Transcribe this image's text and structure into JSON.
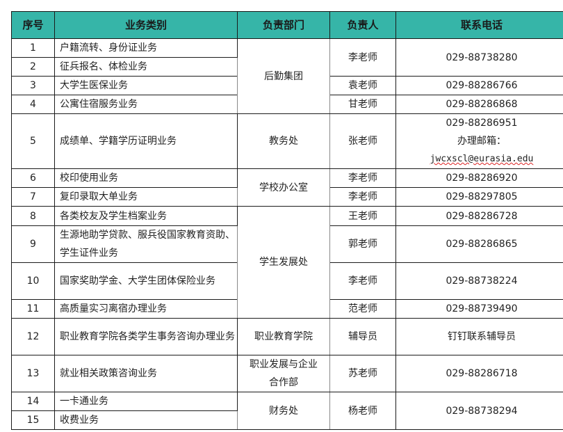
{
  "header": {
    "no": "序号",
    "category": "业务类别",
    "department": "负责部门",
    "person": "负责人",
    "phone": "联系电话"
  },
  "header_color": "#36b5a8",
  "rows": [
    {
      "no": "1",
      "category": "户籍流转、身份证业务"
    },
    {
      "no": "2",
      "category": "征兵报名、体检业务"
    },
    {
      "no": "3",
      "category": "大学生医保业务"
    },
    {
      "no": "4",
      "category": "公寓住宿服务业务"
    },
    {
      "no": "5",
      "category": "成绩单、学籍学历证明业务"
    },
    {
      "no": "6",
      "category": "校印使用业务"
    },
    {
      "no": "7",
      "category": "复印录取大单业务"
    },
    {
      "no": "8",
      "category": "各类校友及学生档案业务"
    },
    {
      "no": "9",
      "category": "生源地助学贷款、服兵役国家教育资助、学生证件业务"
    },
    {
      "no": "10",
      "category": "国家奖助学金、大学生团体保险业务"
    },
    {
      "no": "11",
      "category": "高质量实习离宿办理业务"
    },
    {
      "no": "12",
      "category": "职业教育学院各类学生事务咨询办理业务"
    },
    {
      "no": "13",
      "category": "就业相关政策咨询业务"
    },
    {
      "no": "14",
      "category": "一卡通业务"
    },
    {
      "no": "15",
      "category": "收费业务"
    }
  ],
  "departments": {
    "logistics": "后勤集团",
    "academic": "教务处",
    "office": "学校办公室",
    "student": "学生发展处",
    "vocational": "职业教育学院",
    "career": "职业发展与企业合作部",
    "finance": "财务处"
  },
  "persons": {
    "p1_2": "李老师",
    "p3": "袁老师",
    "p4": "甘老师",
    "p5": "张老师",
    "p6": "李老师",
    "p7": "李老师",
    "p8": "王老师",
    "p9": "郭老师",
    "p10": "李老师",
    "p11": "范老师",
    "p12": "辅导员",
    "p13": "苏老师",
    "p14_15": "杨老师"
  },
  "phones": {
    "p1_2": "029-88738280",
    "p3": "029-88286766",
    "p4": "029-88286868",
    "p5": "029-88286951",
    "p5_email_label": "办理邮箱：",
    "p5_email": "jwcxscl@eurasia.edu",
    "p6": "029-88286920",
    "p7": "029-88297805",
    "p8": "029-88286728",
    "p9": "029-88286865",
    "p10": "029-88738224",
    "p11": "029-88739490",
    "p12": "钉钉联系辅导员",
    "p13": "029-88286718",
    "p14_15": "029-88738294"
  }
}
